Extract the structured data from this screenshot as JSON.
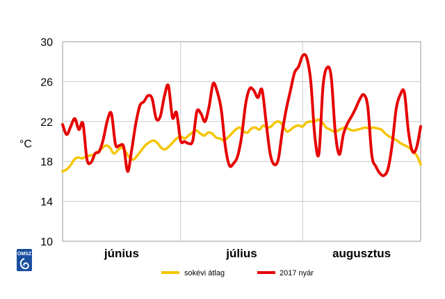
{
  "chart_data": {
    "type": "line",
    "ylabel": "°C",
    "ylim": [
      10,
      30
    ],
    "yticks": [
      10,
      14,
      18,
      22,
      26,
      30
    ],
    "month_labels": [
      "június",
      "július",
      "augusztus"
    ],
    "grid": true,
    "legend_position": "bottom",
    "series": [
      {
        "name": "sokévi átlag",
        "color": "#f5c400",
        "values": [
          17.0,
          17.2,
          17.6,
          18.2,
          18.4,
          18.3,
          18.5,
          18.6,
          18.7,
          19.0,
          19.3,
          19.6,
          19.4,
          18.8,
          19.1,
          19.4,
          19.0,
          18.4,
          18.2,
          18.6,
          19.1,
          19.6,
          19.9,
          20.1,
          19.9,
          19.4,
          19.2,
          19.5,
          19.9,
          20.3,
          20.5,
          20.3,
          20.6,
          20.9,
          21.1,
          20.8,
          20.6,
          20.9,
          20.8,
          20.4,
          20.3,
          20.1,
          20.4,
          20.8,
          21.2,
          21.4,
          21.0,
          20.9,
          21.3,
          21.4,
          21.2,
          21.6,
          21.4,
          21.5,
          21.9,
          22.0,
          21.6,
          21.0,
          21.2,
          21.5,
          21.6,
          21.5,
          21.9,
          22.0,
          22.0,
          22.2,
          21.9,
          21.4,
          21.2,
          21.0,
          21.1,
          21.3,
          21.4,
          21.2,
          21.1,
          21.2,
          21.3,
          21.4,
          21.3,
          21.4,
          21.3,
          21.2,
          20.8,
          20.5,
          20.3,
          20.1,
          19.8,
          19.6,
          19.4,
          19.0,
          18.6,
          17.7
        ]
      },
      {
        "name": "2017 nyár",
        "color": "#e60000",
        "values": [
          21.7,
          20.7,
          21.5,
          22.3,
          21.2,
          21.8,
          18.2,
          17.9,
          18.8,
          19.0,
          20.2,
          22.1,
          22.8,
          19.7,
          19.6,
          19.5,
          17.0,
          19.2,
          21.8,
          23.6,
          24.0,
          24.6,
          24.3,
          22.3,
          22.5,
          24.5,
          25.6,
          22.4,
          22.9,
          20.1,
          20.0,
          19.8,
          20.1,
          23.0,
          22.8,
          22.0,
          23.5,
          25.8,
          25.0,
          23.2,
          19.5,
          17.6,
          17.8,
          18.5,
          20.5,
          23.8,
          25.3,
          25.1,
          24.4,
          25.2,
          22.0,
          18.8,
          17.7,
          18.2,
          21.0,
          23.3,
          25.1,
          26.9,
          27.5,
          28.6,
          28.4,
          26.0,
          20.5,
          18.8,
          25.5,
          27.4,
          26.5,
          21.0,
          18.7,
          20.7,
          21.8,
          22.5,
          23.3,
          24.2,
          24.7,
          23.5,
          18.6,
          17.5,
          16.8,
          16.6,
          17.3,
          19.7,
          23.3,
          24.7,
          24.9,
          21.0,
          19.0,
          19.4,
          21.5
        ]
      }
    ]
  },
  "logo": {
    "text": "OMSZ",
    "color": "#1a4fa0"
  }
}
